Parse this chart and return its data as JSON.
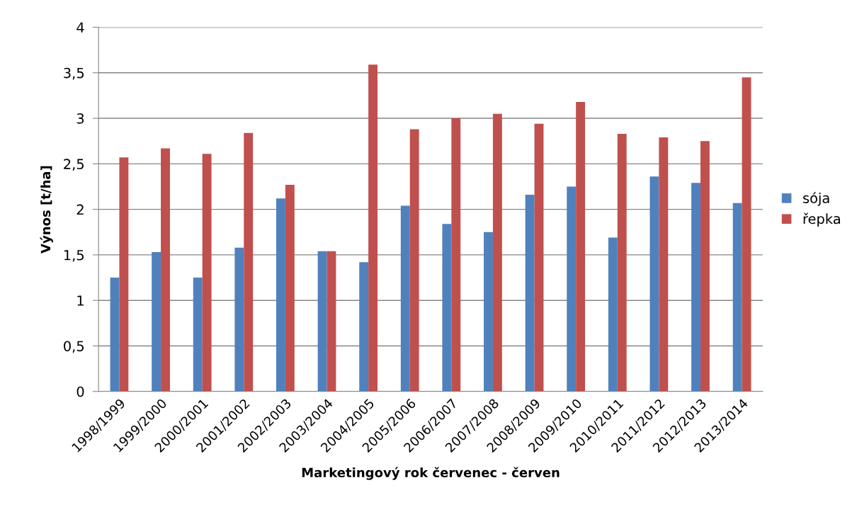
{
  "chart_data": {
    "type": "bar",
    "xlabel": "Marketingový rok červenec - červen",
    "ylabel": "Výnos [t/ha]",
    "categories": [
      "1998/1999",
      "1999/2000",
      "2000/2001",
      "2001/2002",
      "2002/2003",
      "2003/2004",
      "2004/2005",
      "2005/2006",
      "2006/2007",
      "2007/2008",
      "2008/2009",
      "2009/2010",
      "2010/2011",
      "2011/2012",
      "2012/2013",
      "2013/2014"
    ],
    "series": [
      {
        "name": "sója",
        "color": "#4f81bd",
        "values": [
          1.25,
          1.53,
          1.25,
          1.58,
          2.12,
          1.54,
          1.42,
          2.04,
          1.84,
          1.75,
          2.16,
          2.25,
          1.69,
          2.36,
          2.29,
          2.07
        ]
      },
      {
        "name": "řepka",
        "color": "#c0504d",
        "values": [
          2.57,
          2.67,
          2.61,
          2.84,
          2.27,
          1.54,
          3.59,
          2.88,
          3.0,
          3.05,
          2.94,
          3.18,
          2.83,
          2.79,
          2.75,
          3.45
        ]
      }
    ],
    "ylim": [
      0,
      4
    ],
    "yticks": [
      0,
      {
        "value": 0.5,
        "label": "0,5"
      },
      1,
      {
        "value": 1.5,
        "label": "1,5"
      },
      2,
      {
        "value": 2.5,
        "label": "2,5"
      },
      3,
      {
        "value": 3.5,
        "label": "3,5"
      },
      4
    ],
    "grid": "y",
    "legend": "right"
  }
}
